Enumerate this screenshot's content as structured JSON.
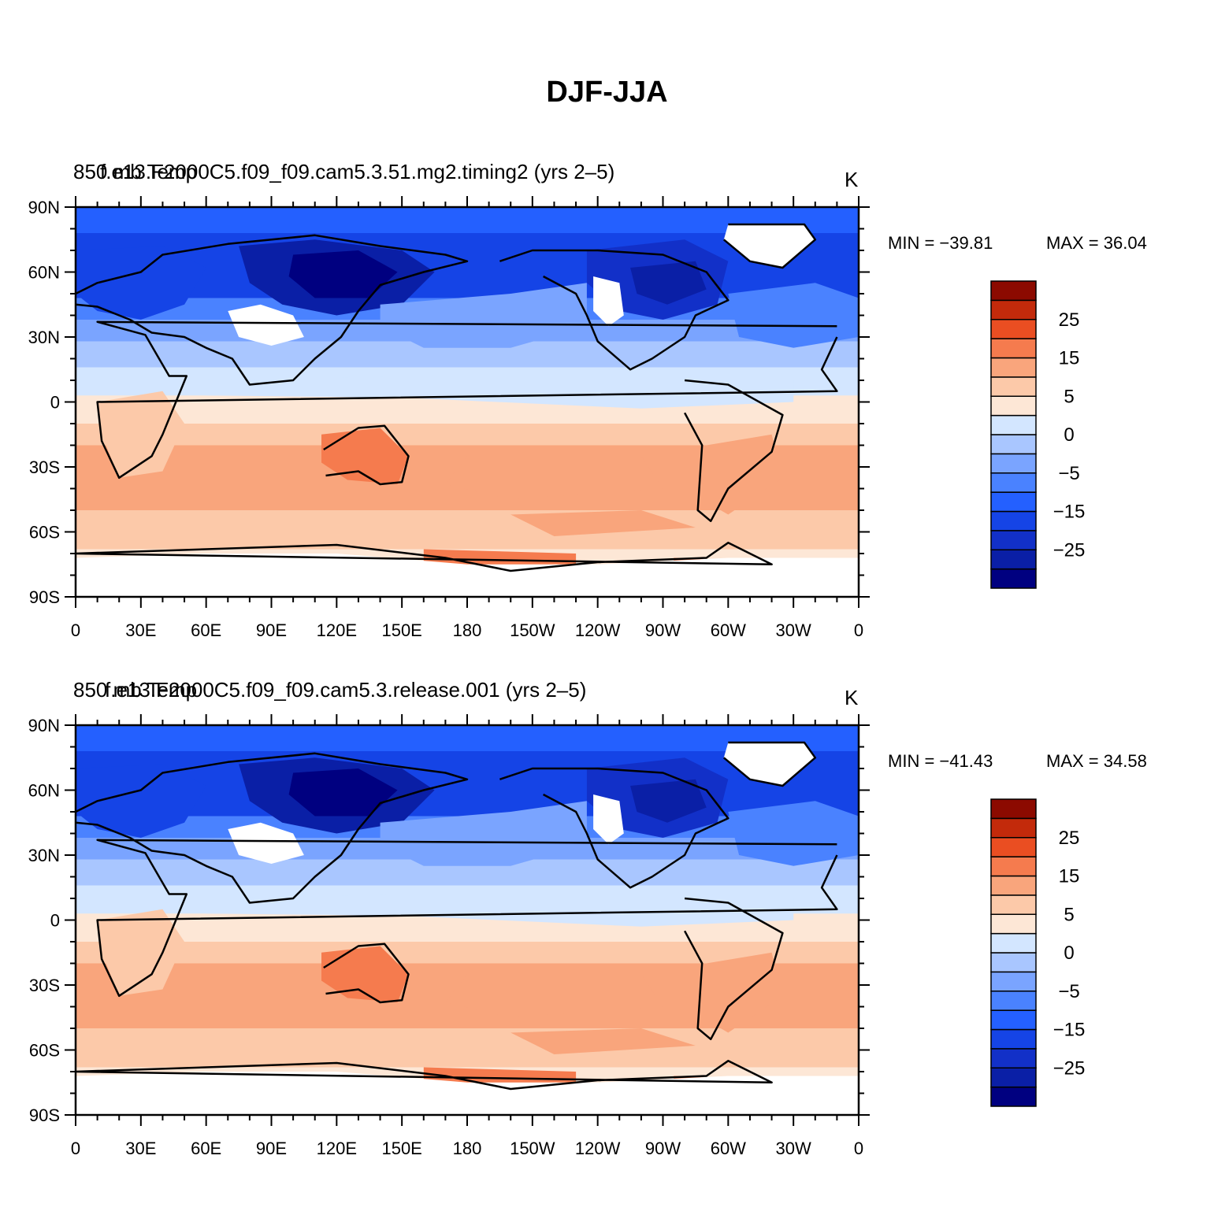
{
  "title": "DJF-JJA",
  "colors": {
    "levels": [
      "#000080",
      "#0a1fa6",
      "#1230c8",
      "#1544e6",
      "#2460ff",
      "#4a82ff",
      "#7aa4ff",
      "#a9c6ff",
      "#d3e6ff",
      "#fde7d6",
      "#fcc9a9",
      "#f9a57c",
      "#f57b4e",
      "#ea4e22",
      "#c32a0b",
      "#8c0a00"
    ],
    "land_missing": "#ffffff",
    "coast": "#000000"
  },
  "panels": [
    {
      "id": "top",
      "subtitle_left": "850 mb Temp",
      "subtitle_center": "f.e13.F2000C5.f09_f09.cam5.3.51.mg2.timing2 (yrs 2–5)",
      "units": "K",
      "min_label": "MIN = −39.81",
      "max_label": "MAX =   36.04"
    },
    {
      "id": "bottom",
      "subtitle_left": "850 mb Temp",
      "subtitle_center": "f.e13.F2000C5.f09_f09.cam5.3.release.001 (yrs 2–5)",
      "units": "K",
      "min_label": "MIN = −41.43",
      "max_label": "MAX =   34.58"
    }
  ],
  "axes": {
    "lat_labels": [
      "90N",
      "60N",
      "30N",
      "0",
      "30S",
      "60S",
      "90S"
    ],
    "lon_labels": [
      "0",
      "30E",
      "60E",
      "90E",
      "120E",
      "150E",
      "180",
      "150W",
      "120W",
      "90W",
      "60W",
      "30W",
      "0"
    ]
  },
  "colorbar": {
    "labels": [
      "25",
      "15",
      "5",
      "0",
      "−5",
      "−15",
      "−25"
    ]
  }
}
